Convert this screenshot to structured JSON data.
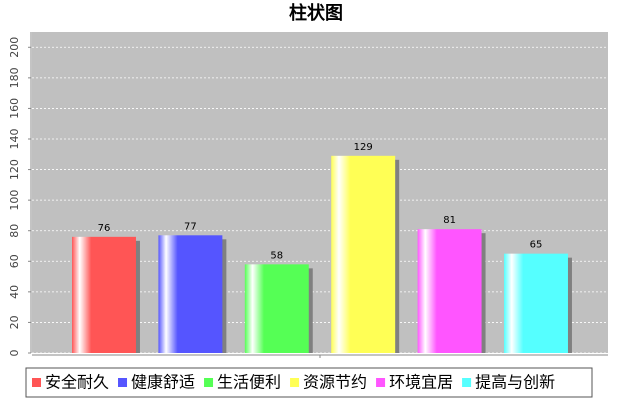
{
  "chart_data": {
    "type": "bar",
    "title": "柱状图",
    "categories": [
      null
    ],
    "series": [
      {
        "name": "安全耐久",
        "color": "#ff5555",
        "values": [
          76
        ]
      },
      {
        "name": "健康舒适",
        "color": "#5555ff",
        "values": [
          77
        ]
      },
      {
        "name": "生活便利",
        "color": "#55ff55",
        "values": [
          58
        ]
      },
      {
        "name": "资源节约",
        "color": "#ffff55",
        "values": [
          129
        ]
      },
      {
        "name": "环境宜居",
        "color": "#ff55ff",
        "values": [
          81
        ]
      },
      {
        "name": "提高与创新",
        "color": "#55ffff",
        "values": [
          65
        ]
      }
    ],
    "ylim": [
      0,
      210
    ],
    "yticks": [
      0,
      20,
      40,
      60,
      80,
      100,
      120,
      140,
      160,
      180,
      200
    ],
    "grid": true,
    "legend": "bottom"
  }
}
